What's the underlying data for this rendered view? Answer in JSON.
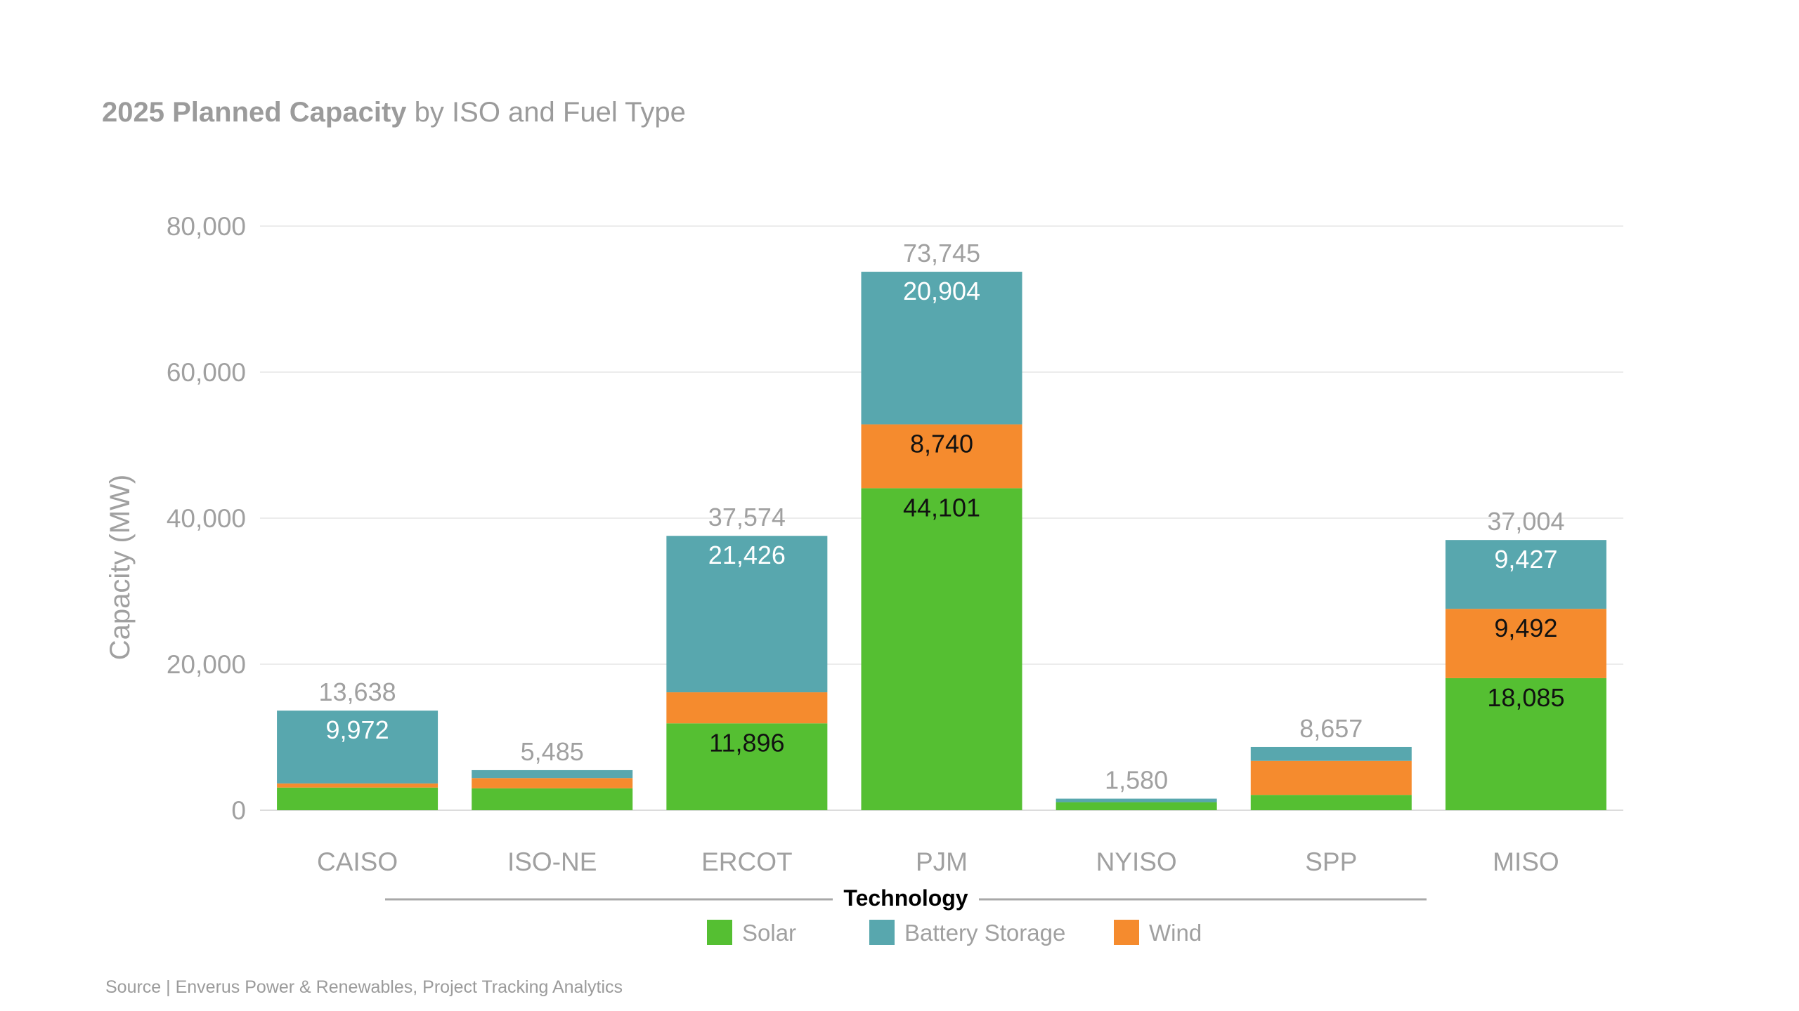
{
  "title": {
    "bold": "2025 Planned Capacity",
    "rest": " by ISO and Fuel Type"
  },
  "source": "Source | Enverus Power & Renewables, Project Tracking Analytics",
  "colors": {
    "solar": "#55bf32",
    "battery": "#58a7ae",
    "wind": "#f58b2e",
    "grid": "#ececec",
    "muted_text": "#a0a0a0"
  },
  "chart_data": {
    "type": "bar",
    "stacked": true,
    "title": "2025 Planned Capacity by ISO and Fuel Type",
    "xlabel": "",
    "ylabel": "Capacity (MW)",
    "ylim": [
      0,
      80000
    ],
    "yticks": [
      0,
      20000,
      40000,
      60000,
      80000
    ],
    "ytick_labels": [
      "0",
      "20,000",
      "40,000",
      "60,000",
      "80,000"
    ],
    "grid": true,
    "legend_title": "Technology",
    "legend_position": "bottom",
    "categories": [
      "CAISO",
      "ISO-NE",
      "ERCOT",
      "PJM",
      "NYISO",
      "SPP",
      "MISO"
    ],
    "series": [
      {
        "name": "Solar",
        "key": "solar",
        "values": [
          3100,
          3000,
          11896,
          44101,
          1100,
          2100,
          18085
        ]
      },
      {
        "name": "Wind",
        "key": "wind",
        "values": [
          566,
          1400,
          4252,
          8740,
          0,
          4657,
          9492
        ]
      },
      {
        "name": "Battery Storage",
        "key": "battery",
        "values": [
          9972,
          1085,
          21426,
          20904,
          480,
          1900,
          9427
        ]
      }
    ],
    "legend_order": [
      "Solar",
      "Battery Storage",
      "Wind"
    ],
    "totals": [
      13638,
      5485,
      37574,
      73745,
      1580,
      8657,
      37004
    ],
    "total_labels": [
      "13,638",
      "5,485",
      "37,574",
      "73,745",
      "1,580",
      "8,657",
      "37,004"
    ],
    "segment_labels": {
      "solar": [
        "",
        "",
        "11,896",
        "44,101",
        "",
        "",
        "18,085"
      ],
      "wind": [
        "",
        "",
        "",
        "8,740",
        "",
        "",
        "9,492"
      ],
      "battery": [
        "9,972",
        "",
        "21,426",
        "20,904",
        "",
        "",
        "9,427"
      ]
    }
  }
}
